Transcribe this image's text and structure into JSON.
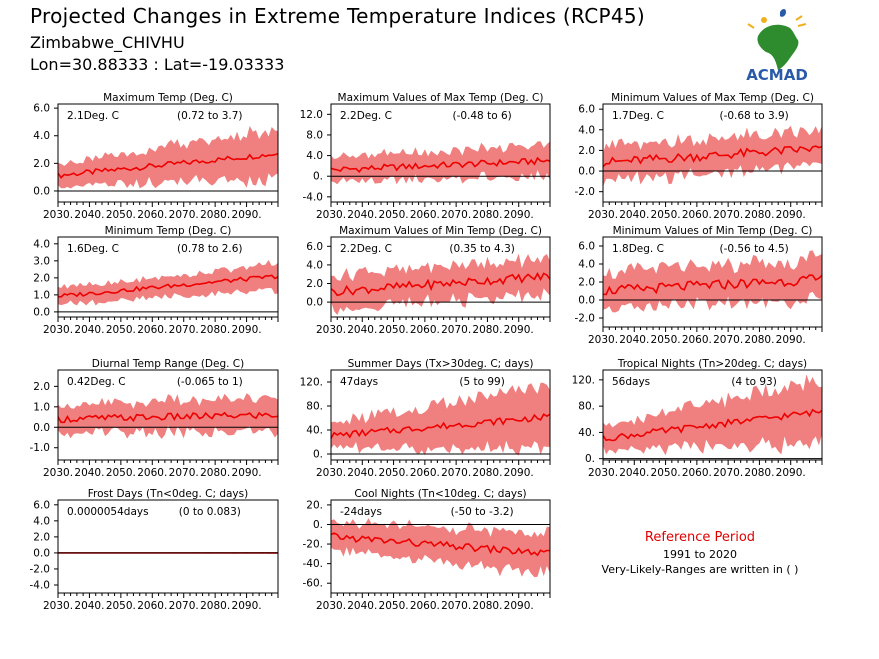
{
  "header": {
    "title": "Projected Changes in Extreme Temperature Indices (RCP45)",
    "location": "Zimbabwe_CHIVHU",
    "coords": "Lon=30.88333 : Lat=-19.03333"
  },
  "logo": {
    "text": "ACMAD",
    "icon": "africa-map-icon",
    "color": "#2a5aa8"
  },
  "reference": {
    "title": "Reference Period",
    "years": "1991 to 2020",
    "note": "Very-Likely-Ranges are written in ( )"
  },
  "colors": {
    "band": "#f08080",
    "line": "#ee0000",
    "zero_line": "#000000"
  },
  "chart_data": [
    {
      "type": "area",
      "title": "Maximum Temp (Deg. C)",
      "value_label": "2.1Deg. C",
      "range_label": "(0.72 to 3.7)",
      "x_ticks": [
        "2030.",
        "2040.",
        "2050.",
        "2060.",
        "2070.",
        "2080.",
        "2090."
      ],
      "xlim": [
        2030,
        2100
      ],
      "ylim": [
        -0.8,
        6.3
      ],
      "y_ticks": [
        0,
        2,
        4,
        6
      ],
      "y_tick_labels": [
        "0.0",
        "2.0",
        "4.0",
        "6.0"
      ],
      "mean_start": 1.1,
      "mean_end": 2.7,
      "band_low": 0.8,
      "band_high": 1.9
    },
    {
      "type": "area",
      "title": "Maximum Values of Max Temp (Deg. C)",
      "value_label": "2.2Deg. C",
      "range_label": "(-0.48 to 6)",
      "x_ticks": [
        "2030.",
        "2040.",
        "2050.",
        "2060.",
        "2070.",
        "2080.",
        "2090."
      ],
      "xlim": [
        2030,
        2100
      ],
      "ylim": [
        -5,
        14
      ],
      "y_ticks": [
        -4,
        0,
        4,
        8,
        12
      ],
      "y_tick_labels": [
        "-4.0",
        "0.",
        "4.0",
        "8.0",
        "12.0"
      ],
      "mean_start": 1.2,
      "mean_end": 3.0,
      "band_low": 2.5,
      "band_high": 3.2
    },
    {
      "type": "area",
      "title": "Minimum Values of Max Temp (Deg. C)",
      "value_label": "1.7Deg. C",
      "range_label": "(-0.68 to 3.9)",
      "x_ticks": [
        "2030.",
        "2040.",
        "2050.",
        "2060.",
        "2070.",
        "2080.",
        "2090."
      ],
      "xlim": [
        2030,
        2100
      ],
      "ylim": [
        -3,
        6.5
      ],
      "y_ticks": [
        -2,
        0,
        2,
        4,
        6
      ],
      "y_tick_labels": [
        "-2.0",
        "0.0",
        "2.0",
        "4.0",
        "6.0"
      ],
      "mean_start": 0.8,
      "mean_end": 2.2,
      "band_low": 1.8,
      "band_high": 1.8
    },
    {
      "type": "area",
      "title": "Minimum Temp (Deg. C)",
      "value_label": "1.6Deg. C",
      "range_label": "(0.78 to 2.6)",
      "x_ticks": [
        "2030.",
        "2040.",
        "2050.",
        "2060.",
        "2070.",
        "2080.",
        "2090."
      ],
      "xlim": [
        2030,
        2100
      ],
      "ylim": [
        -0.3,
        4.4
      ],
      "y_ticks": [
        0,
        1,
        2,
        3,
        4
      ],
      "y_tick_labels": [
        "0.0",
        "1.0",
        "2.0",
        "3.0",
        "4.0"
      ],
      "mean_start": 0.9,
      "mean_end": 2.1,
      "band_low": 0.5,
      "band_high": 0.8
    },
    {
      "type": "area",
      "title": "Maximum Values of Min Temp (Deg. C)",
      "value_label": "2.2Deg. C",
      "range_label": "(0.35 to 4.3)",
      "x_ticks": [
        "2030.",
        "2040.",
        "2050.",
        "2060.",
        "2070.",
        "2080.",
        "2090."
      ],
      "xlim": [
        2030,
        2100
      ],
      "ylim": [
        -1.6,
        7.0
      ],
      "y_ticks": [
        0,
        2,
        4,
        6
      ],
      "y_tick_labels": [
        "0.0",
        "2.0",
        "4.0",
        "6.0"
      ],
      "mean_start": 1.1,
      "mean_end": 2.8,
      "band_low": 1.9,
      "band_high": 2.1
    },
    {
      "type": "area",
      "title": "Minimum Values of Min Temp (Deg. C)",
      "value_label": "1.8Deg. C",
      "range_label": "(-0.56 to 4.5)",
      "x_ticks": [
        "2030.",
        "2040.",
        "2050.",
        "2060.",
        "2070.",
        "2080.",
        "2090."
      ],
      "xlim": [
        2030,
        2100
      ],
      "ylim": [
        -3,
        7
      ],
      "y_ticks": [
        -2,
        0,
        2,
        4,
        6
      ],
      "y_tick_labels": [
        "-2.0",
        "0.0",
        "2.0",
        "4.0",
        "6.0"
      ],
      "mean_start": 1.0,
      "mean_end": 2.3,
      "band_low": 2.2,
      "band_high": 2.4
    },
    {
      "type": "area",
      "title": "Diurnal Temp Range (Deg. C)",
      "value_label": "0.42Deg. C",
      "range_label": "(-0.065 to 1)",
      "x_ticks": [
        "2030.",
        "2040.",
        "2050.",
        "2060.",
        "2070.",
        "2080.",
        "2090."
      ],
      "xlim": [
        2030,
        2100
      ],
      "ylim": [
        -1.6,
        2.8
      ],
      "y_ticks": [
        -1,
        0,
        1,
        2
      ],
      "y_tick_labels": [
        "-1.0",
        "0.0",
        "1.0",
        "2.0"
      ],
      "mean_start": 0.4,
      "mean_end": 0.6,
      "band_low": 0.7,
      "band_high": 0.9
    },
    {
      "type": "area",
      "title": "Summer Days (Tx>30deg. C; days)",
      "value_label": "47days",
      "range_label": "(5 to 99)",
      "x_ticks": [
        "2030.",
        "2040.",
        "2050.",
        "2060.",
        "2070.",
        "2080.",
        "2090."
      ],
      "xlim": [
        2030,
        2100
      ],
      "ylim": [
        -10,
        140
      ],
      "y_ticks": [
        0,
        40,
        80,
        120
      ],
      "y_tick_labels": [
        "0.",
        "40.",
        "80.",
        "120."
      ],
      "mean_start": 30,
      "mean_end": 62,
      "band_low": 22,
      "band_high": 55
    },
    {
      "type": "area",
      "title": "Tropical Nights (Tn>20deg. C; days)",
      "value_label": "56days",
      "range_label": "(4 to 93)",
      "x_ticks": [
        "2030.",
        "2040.",
        "2050.",
        "2060.",
        "2070.",
        "2080.",
        "2090."
      ],
      "xlim": [
        2030,
        2100
      ],
      "ylim": [
        -2,
        135
      ],
      "y_ticks": [
        0,
        40,
        80,
        120
      ],
      "y_tick_labels": [
        "0.",
        "40.",
        "80.",
        "120."
      ],
      "mean_start": 30,
      "mean_end": 72,
      "band_low": 20,
      "band_high": 50
    },
    {
      "type": "area",
      "title": "Frost Days (Tn<0deg. C; days)",
      "value_label": "0.0000054days",
      "range_label": "(0 to 0.083)",
      "x_ticks": [
        "2030.",
        "2040.",
        "2050.",
        "2060.",
        "2070.",
        "2080.",
        "2090."
      ],
      "xlim": [
        2030,
        2100
      ],
      "ylim": [
        -5,
        6.6
      ],
      "y_ticks": [
        -4,
        -2,
        0,
        2,
        4,
        6
      ],
      "y_tick_labels": [
        "-4.0",
        "-2.0",
        "0.0",
        "2.0",
        "4.0",
        "6.0"
      ],
      "mean_start": 0,
      "mean_end": 0,
      "band_low": 0,
      "band_high": 0.1
    },
    {
      "type": "area",
      "title": "Cool Nights (Tn<10deg. C; days)",
      "value_label": "-24days",
      "range_label": "(-50 to -3.2)",
      "x_ticks": [
        "2030.",
        "2040.",
        "2050.",
        "2060.",
        "2070.",
        "2080.",
        "2090."
      ],
      "xlim": [
        2030,
        2100
      ],
      "ylim": [
        -70,
        25
      ],
      "y_ticks": [
        -60,
        -40,
        -20,
        0,
        20
      ],
      "y_tick_labels": [
        "-60.",
        "-40.",
        "-20.",
        "0.",
        "20."
      ],
      "mean_start": -12,
      "mean_end": -30,
      "band_low": 15,
      "band_high": 22
    }
  ]
}
